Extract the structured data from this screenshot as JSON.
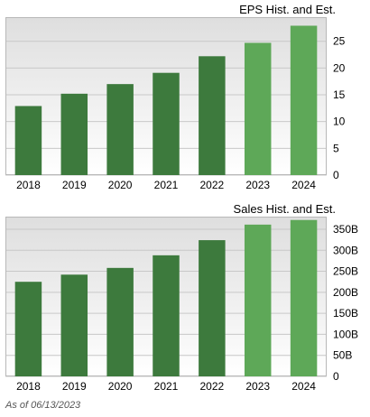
{
  "chart_data": [
    {
      "type": "bar",
      "title": "EPS Hist. and Est.",
      "categories": [
        "2018",
        "2019",
        "2020",
        "2021",
        "2022",
        "2023",
        "2024"
      ],
      "values": [
        12.9,
        15.2,
        17.0,
        19.1,
        22.2,
        24.7,
        27.9
      ],
      "estimate": [
        false,
        false,
        false,
        false,
        false,
        true,
        true
      ],
      "yticks": [
        "0",
        "5",
        "10",
        "15",
        "20",
        "25"
      ],
      "ytick_values": [
        0,
        5,
        10,
        15,
        20,
        25
      ],
      "ylim": [
        0,
        29.5
      ],
      "grid": true,
      "colors": {
        "historical": "#3d7a3d",
        "estimate": "#5ea858"
      }
    },
    {
      "type": "bar",
      "title": "Sales Hist. and Est.",
      "categories": [
        "2018",
        "2019",
        "2020",
        "2021",
        "2022",
        "2023",
        "2024"
      ],
      "values": [
        225,
        242,
        258,
        288,
        324,
        361,
        372
      ],
      "estimate": [
        false,
        false,
        false,
        false,
        false,
        true,
        true
      ],
      "yticks": [
        "0",
        "50B",
        "100B",
        "150B",
        "200B",
        "250B",
        "300B",
        "350B"
      ],
      "ytick_values": [
        0,
        50,
        100,
        150,
        200,
        250,
        300,
        350
      ],
      "ylim": [
        0,
        380
      ],
      "grid": true,
      "colors": {
        "historical": "#3d7a3d",
        "estimate": "#5ea858"
      }
    }
  ],
  "footer": {
    "as_of": "As of 06/13/2023"
  }
}
